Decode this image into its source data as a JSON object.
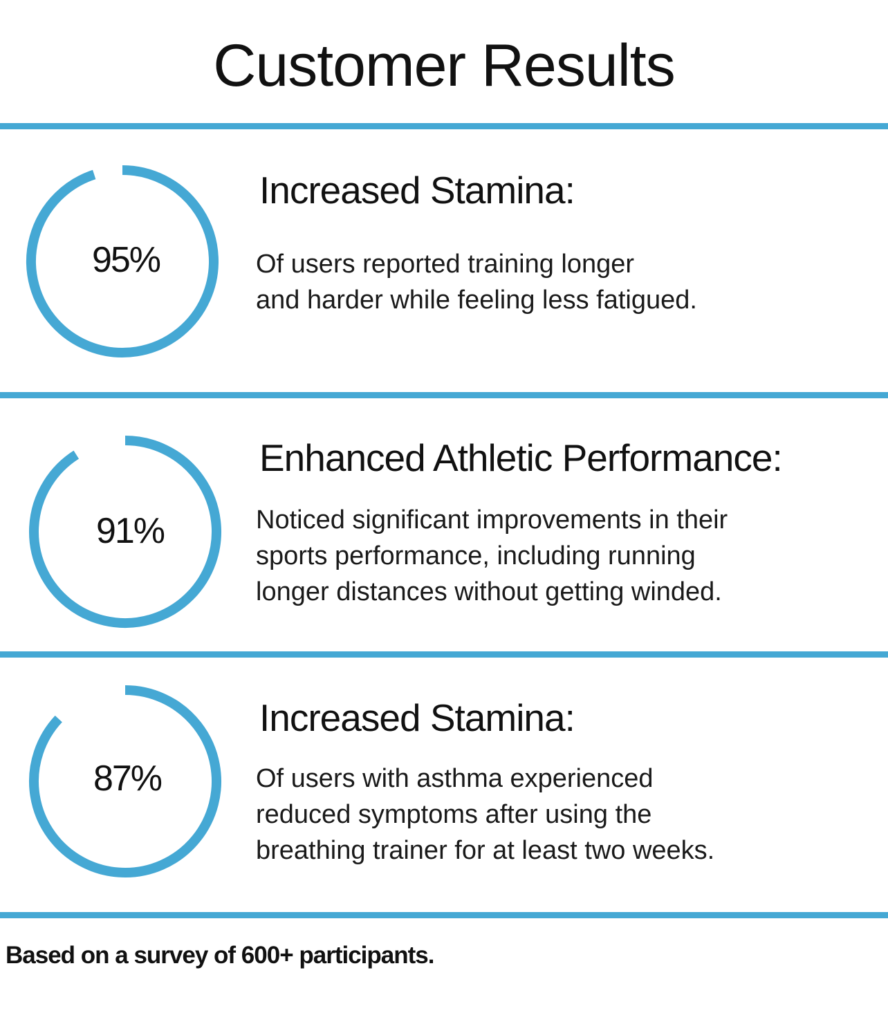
{
  "title": "Customer Results",
  "accent_color": "#45a8d4",
  "results": [
    {
      "percent": 95,
      "percent_label": "95%",
      "heading": "Increased Stamina:",
      "description": "Of users reported training longer\nand harder while feeling less fatigued."
    },
    {
      "percent": 91,
      "percent_label": "91%",
      "heading": "Enhanced Athletic Performance:",
      "description": "Noticed significant improvements in their\nsports performance, including running\nlonger distances without getting winded."
    },
    {
      "percent": 87,
      "percent_label": "87%",
      "heading": "Increased Stamina:",
      "description": "Of users with asthma experienced\nreduced symptoms after using the\nbreathing trainer for at least two weeks."
    }
  ],
  "footnote": "Based on a survey of 600+ participants."
}
